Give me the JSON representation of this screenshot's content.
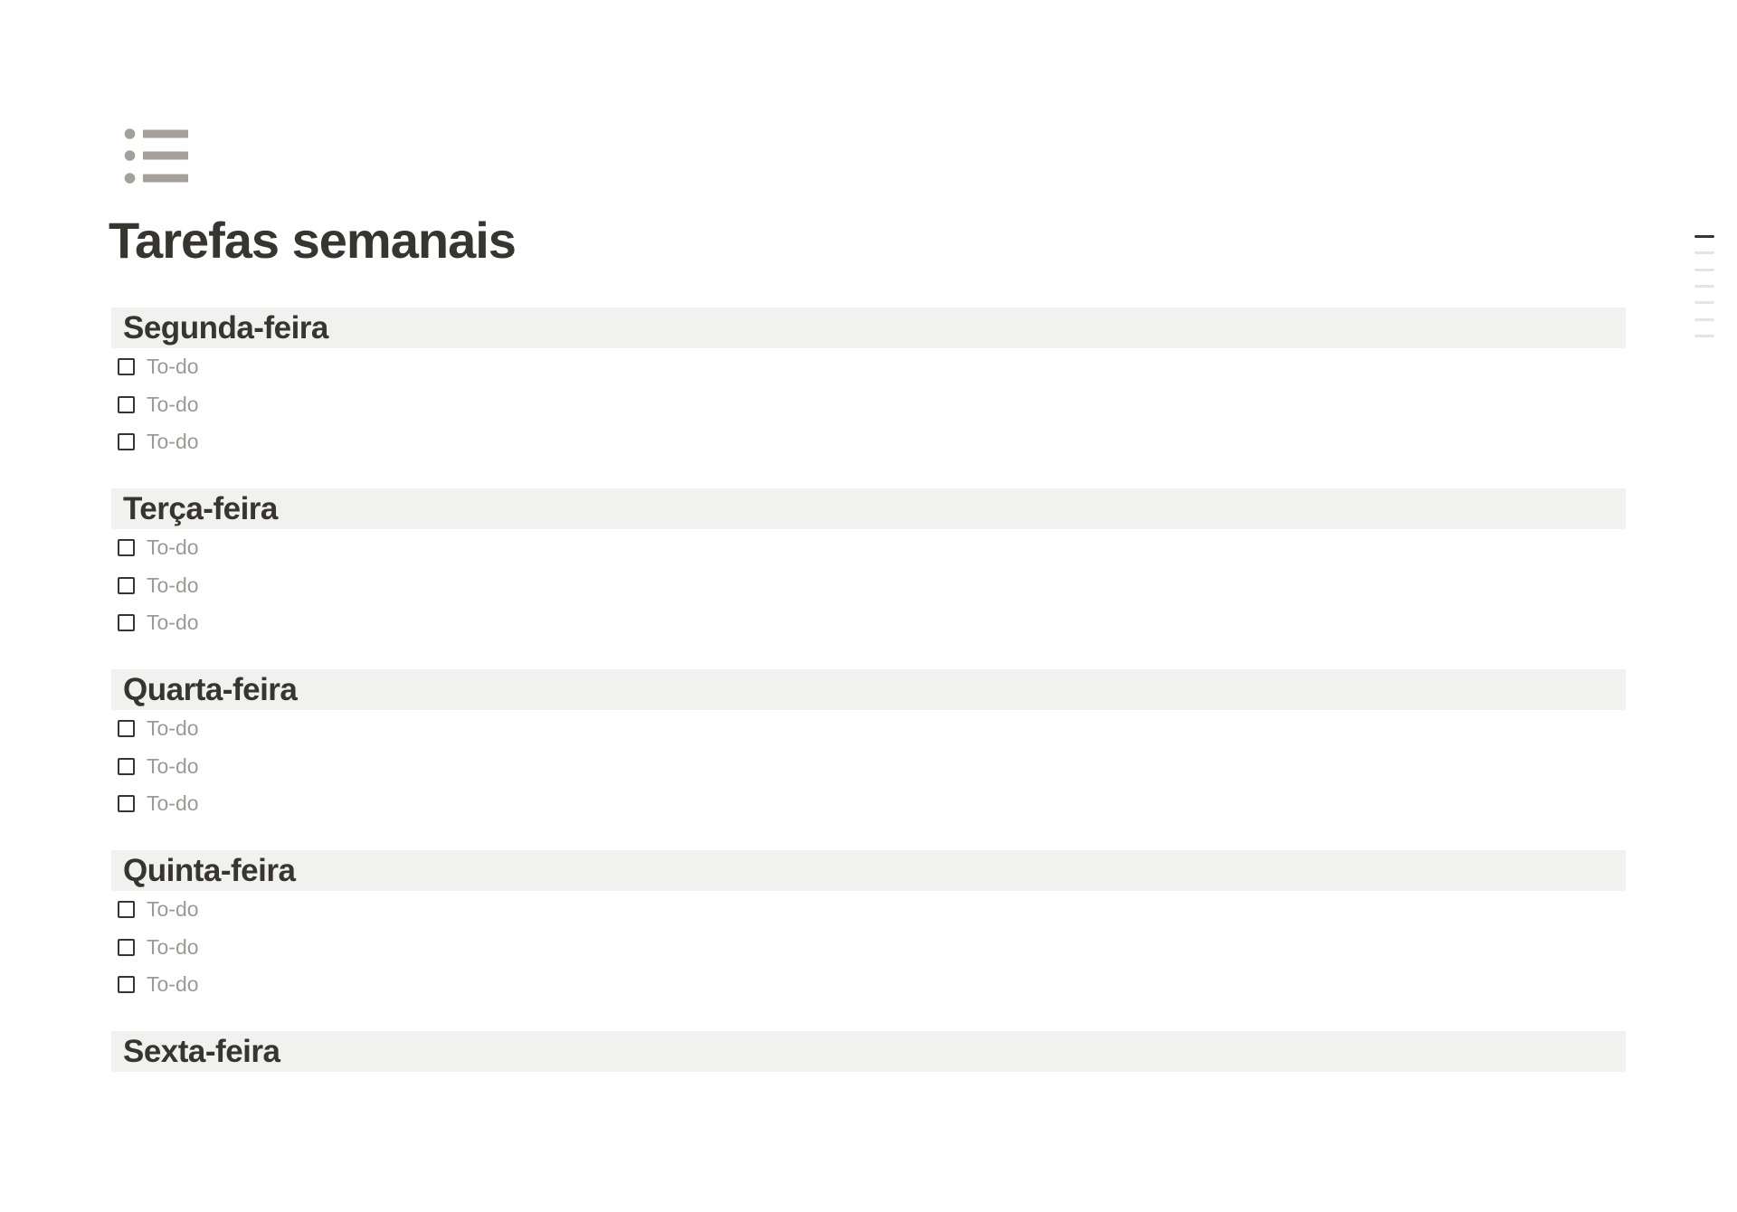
{
  "page": {
    "icon": "bulleted-list-icon",
    "title": "Tarefas semanais"
  },
  "sections": [
    {
      "heading": "Segunda-feira",
      "todos": [
        {
          "label": "To-do",
          "checked": false
        },
        {
          "label": "To-do",
          "checked": false
        },
        {
          "label": "To-do",
          "checked": false
        }
      ]
    },
    {
      "heading": "Terça-feira",
      "todos": [
        {
          "label": "To-do",
          "checked": false
        },
        {
          "label": "To-do",
          "checked": false
        },
        {
          "label": "To-do",
          "checked": false
        }
      ]
    },
    {
      "heading": "Quarta-feira",
      "todos": [
        {
          "label": "To-do",
          "checked": false
        },
        {
          "label": "To-do",
          "checked": false
        },
        {
          "label": "To-do",
          "checked": false
        }
      ]
    },
    {
      "heading": "Quinta-feira",
      "todos": [
        {
          "label": "To-do",
          "checked": false
        },
        {
          "label": "To-do",
          "checked": false
        },
        {
          "label": "To-do",
          "checked": false
        }
      ]
    },
    {
      "heading": "Sexta-feira",
      "todos": []
    }
  ],
  "outline": {
    "bar_count": 7,
    "active_index": 0
  },
  "colors": {
    "text": "#37352f",
    "muted_text": "#9b9a97",
    "heading_band_bg": "#f1f1ef",
    "page_icon": "#a5a099",
    "outline_active": "#37352f",
    "outline_inactive": "#e4e3e5",
    "background": "#ffffff"
  }
}
